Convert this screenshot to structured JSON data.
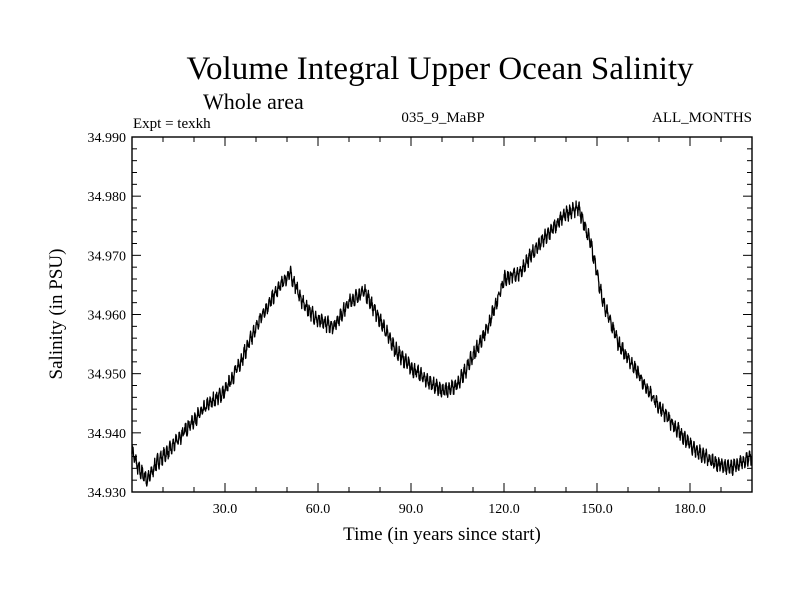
{
  "header": {
    "title": "Volume Integral Upper Ocean Salinity",
    "subtitle": "Whole area",
    "expt": "Expt = texkh",
    "run": "035_9_MaBP",
    "months": "ALL_MONTHS"
  },
  "chart_data": {
    "type": "line",
    "title": "Volume Integral Upper Ocean Salinity",
    "xlabel": "Time (in years since start)",
    "ylabel": "Salinity (in PSU)",
    "xlim": [
      0,
      200
    ],
    "ylim": [
      34.93,
      34.99
    ],
    "xticks": [
      30,
      60,
      90,
      120,
      150,
      180
    ],
    "xtick_labels": [
      "30.0",
      "60.0",
      "90.0",
      "120.0",
      "150.0",
      "180.0"
    ],
    "yticks": [
      34.93,
      34.94,
      34.95,
      34.96,
      34.97,
      34.98,
      34.99
    ],
    "ytick_labels": [
      "34.930",
      "34.940",
      "34.950",
      "34.960",
      "34.970",
      "34.980",
      "34.990"
    ],
    "grid": false,
    "series": [
      {
        "name": "Salinity",
        "color": "#000000",
        "x": [
          0,
          2,
          5,
          8,
          12,
          18,
          25,
          30,
          35,
          42,
          48,
          51,
          55,
          60,
          65,
          70,
          75,
          80,
          85,
          90,
          95,
          100,
          105,
          110,
          115,
          120,
          125,
          130,
          135,
          140,
          144,
          148,
          152,
          157,
          162,
          168,
          175,
          182,
          188,
          193,
          197,
          200
        ],
        "values": [
          34.937,
          34.934,
          34.932,
          34.935,
          34.937,
          34.941,
          34.945,
          34.947,
          34.952,
          34.96,
          34.965,
          34.967,
          34.962,
          34.959,
          34.958,
          34.962,
          34.964,
          34.959,
          34.954,
          34.951,
          34.949,
          34.947,
          34.948,
          34.953,
          34.958,
          34.966,
          34.967,
          34.971,
          34.974,
          34.977,
          34.978,
          34.972,
          34.962,
          34.955,
          34.951,
          34.946,
          34.941,
          34.937,
          34.935,
          34.934,
          34.935,
          34.936
        ]
      }
    ]
  }
}
